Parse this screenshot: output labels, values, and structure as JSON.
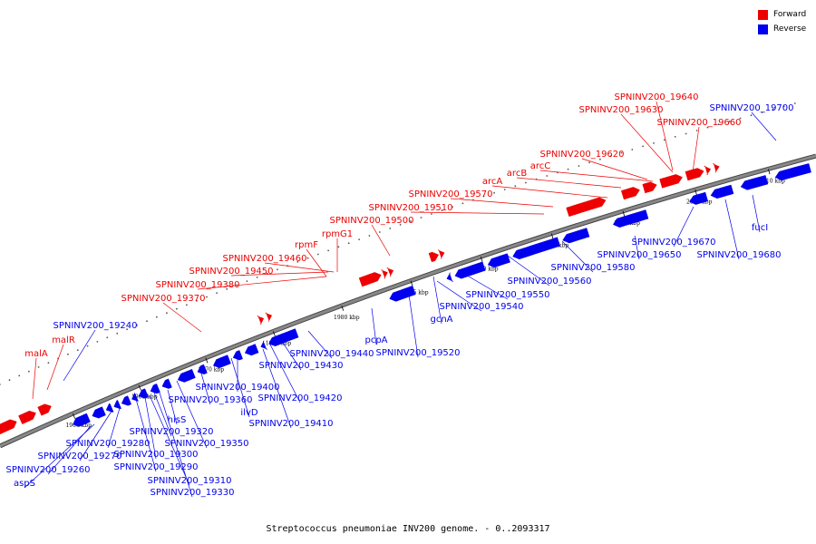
{
  "colors": {
    "forward": "#ee0000",
    "reverse": "#0000ee",
    "backbone": "#888888",
    "lead": "#000000"
  },
  "legend": [
    {
      "name": "Forward",
      "strand": "forward"
    },
    {
      "name": "Reverse",
      "strand": "reverse"
    }
  ],
  "caption": "Streptococcus pneumoniae INV200 genome. - 0..2093317",
  "ticks": [
    {
      "label": "1960 kbp"
    },
    {
      "label": "1965 kbp"
    },
    {
      "label": "1970 kbp"
    },
    {
      "label": "1975 kbp"
    },
    {
      "label": "1980 kbp"
    },
    {
      "label": "1985 kbp"
    },
    {
      "label": "1990 kbp"
    },
    {
      "label": "1995 kbp"
    },
    {
      "label": "2000 kbp"
    },
    {
      "label": "2005 kbp"
    },
    {
      "label": "2010 kbp"
    }
  ],
  "forward_labels": [
    "malA",
    "malR",
    "SPNINV200_19370",
    "SPNINV200_19380",
    "SPNINV200_19450",
    "SPNINV200_19460",
    "rpmF",
    "rpmG1",
    "SPNINV200_19500",
    "SPNINV200_19510",
    "SPNINV200_19570",
    "arcA",
    "arcB",
    "arcC",
    "SPNINV200_19620",
    "SPNINV200_19630",
    "SPNINV200_19640",
    "SPNINV200_19660"
  ],
  "reverse_labels": [
    "SPNINV200_19240",
    "SPNINV200_19260",
    "aspS",
    "SPNINV200_19270",
    "SPNINV200_19280",
    "SPNINV200_19290",
    "SPNINV200_19300",
    "SPNINV200_19310",
    "SPNINV200_19320",
    "SPNINV200_19330",
    "hisS",
    "SPNINV200_19350",
    "SPNINV200_19360",
    "ilvD",
    "SPNINV200_19400",
    "SPNINV200_19410",
    "SPNINV200_19420",
    "SPNINV200_19430",
    "SPNINV200_19440",
    "pcpA",
    "SPNINV200_19520",
    "gcnA",
    "SPNINV200_19540",
    "SPNINV200_19550",
    "SPNINV200_19560",
    "SPNINV200_19580",
    "SPNINV200_19650",
    "SPNINV200_19670",
    "fucI",
    "SPNINV200_19680",
    "SPNINV200_19700"
  ]
}
